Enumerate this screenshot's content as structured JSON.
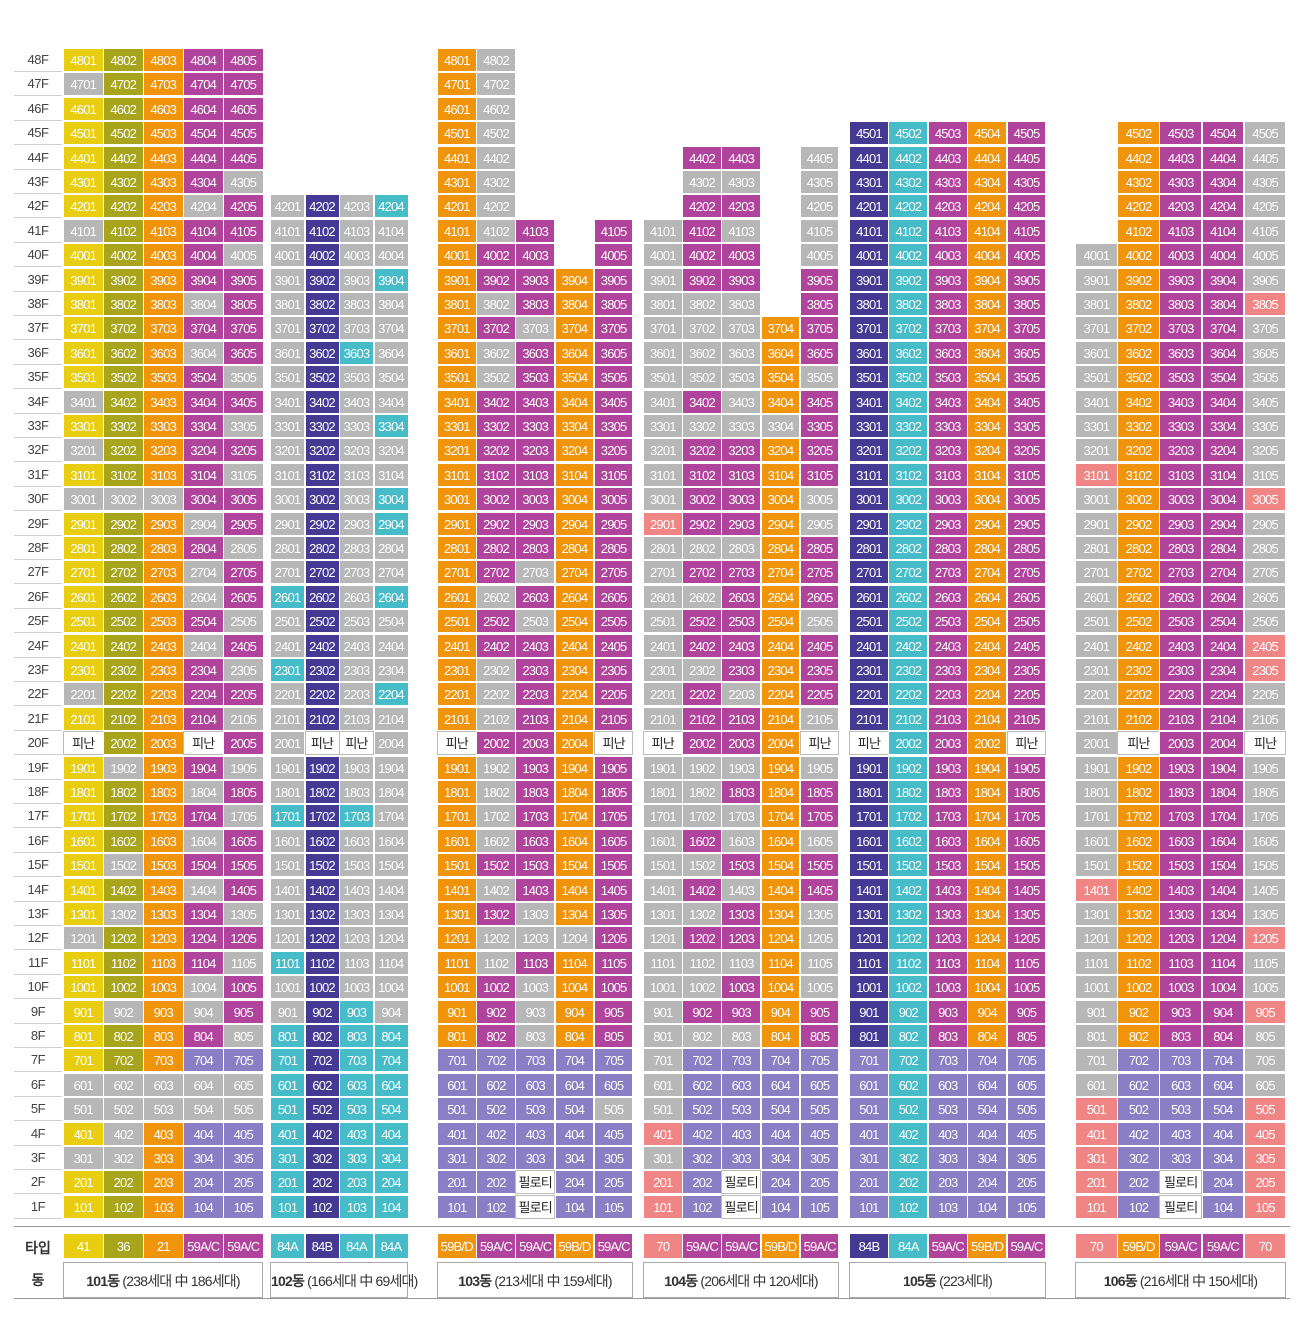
{
  "labels": {
    "type_row": "타입",
    "dong_row": "동",
    "refuge": "피난",
    "piloti": "필로티"
  },
  "floors": [
    "48F",
    "47F",
    "46F",
    "45F",
    "44F",
    "43F",
    "42F",
    "41F",
    "40F",
    "39F",
    "38F",
    "37F",
    "36F",
    "35F",
    "34F",
    "33F",
    "32F",
    "31F",
    "30F",
    "29F",
    "28F",
    "27F",
    "26F",
    "25F",
    "24F",
    "23F",
    "22F",
    "21F",
    "20F",
    "19F",
    "18F",
    "17F",
    "16F",
    "15F",
    "14F",
    "13F",
    "12F",
    "11F",
    "10F",
    "9F",
    "8F",
    "7F",
    "6F",
    "5F",
    "4F",
    "3F",
    "2F",
    "1F"
  ],
  "colors": {
    "Y": "#e8cd10",
    "O": "#a8a51c",
    "R": "#f0940c",
    "P": "#b0449c",
    "G": "#b7b7b7",
    "N": "#453a93",
    "C": "#47bcc9",
    "L": "#8a7ec4",
    "K": "#f08585",
    "W": "#ffffff"
  },
  "buildings": [
    {
      "dong_num": "101동",
      "dong_rest": " (238세대 中 186세대)",
      "types": [
        [
          "41",
          "Y"
        ],
        [
          "36",
          "O"
        ],
        [
          "21",
          "R"
        ],
        [
          "59A/C",
          "P"
        ],
        [
          "59A/C",
          "P"
        ]
      ],
      "top": 48,
      "cols": 5,
      "overrides": {
        "all:1": "G",
        "20:1": "W",
        "20:4": "W",
        "7:4": "L",
        "7:5": "L",
        "6:1": "G",
        "6:2": "G",
        "6:3": "G",
        "6:4": "G",
        "6:5": "G",
        "5:1": "G",
        "5:2": "G",
        "5:3": "G",
        "5:4": "G",
        "5:5": "G",
        "4:2": "G",
        "4:4": "L",
        "4:5": "L",
        "3:1": "G",
        "3:2": "G",
        "3:4": "L",
        "3:5": "L",
        "2:4": "L",
        "2:5": "L",
        "1:4": "L",
        "1:5": "L"
      },
      "grays": [
        "47:1",
        "43:5",
        "42:4",
        "41:1",
        "40:5",
        "38:4",
        "36:4",
        "35:5",
        "34:1",
        "33:5",
        "32:1",
        "31:5",
        "30:1",
        "30:2",
        "30:3",
        "29:4",
        "28:5",
        "27:4",
        "26:4",
        "25:5",
        "24:4",
        "23:5",
        "22:1",
        "21:5",
        "19:2",
        "19:5",
        "18:4",
        "17:5",
        "16:4",
        "15:2",
        "14:4",
        "13:2",
        "13:5",
        "12:1",
        "11:5",
        "10:4",
        "9:2",
        "9:4",
        "8:5"
      ],
      "fallback": [
        "Y",
        "O",
        "R",
        "P",
        "P"
      ]
    },
    {
      "dong_num": "102동",
      "dong_rest": " (166세대 中 69세대)",
      "types": [
        [
          "84A",
          "C"
        ],
        [
          "84B",
          "N"
        ],
        [
          "84A",
          "C"
        ],
        [
          "84A",
          "C"
        ]
      ],
      "top": 42,
      "cols": 4,
      "overrides": {},
      "grays": [],
      "fallback": [
        "G",
        "G",
        "G",
        "G"
      ]
    },
    {
      "dong_num": "103동",
      "dong_rest": " (213세대 中 159세대)",
      "types": [
        [
          "59B/D",
          "R"
        ],
        [
          "59A/C",
          "P"
        ],
        [
          "59A/C",
          "P"
        ],
        [
          "59B/D",
          "R"
        ],
        [
          "59A/C",
          "P"
        ]
      ],
      "top": 48,
      "cols": 5,
      "overrides": {},
      "grays": [],
      "fallback": [
        "R",
        "P",
        "P",
        "R",
        "P"
      ]
    },
    {
      "dong_num": "104동",
      "dong_rest": " (206세대 中 120세대)",
      "types": [
        [
          "70",
          "K"
        ],
        [
          "59A/C",
          "P"
        ],
        [
          "59A/C",
          "P"
        ],
        [
          "59B/D",
          "R"
        ],
        [
          "59A/C",
          "P"
        ]
      ],
      "top": 44,
      "cols": 5,
      "overrides": {},
      "grays": [],
      "fallback": [
        "G",
        "P",
        "P",
        "R",
        "P"
      ]
    },
    {
      "dong_num": "105동",
      "dong_rest": " (223세대)",
      "types": [
        [
          "84B",
          "N"
        ],
        [
          "84A",
          "C"
        ],
        [
          "59A/C",
          "P"
        ],
        [
          "59B/D",
          "R"
        ],
        [
          "59A/C",
          "P"
        ]
      ],
      "top": 45,
      "cols": 5,
      "overrides": {},
      "grays": [],
      "fallback": [
        "N",
        "C",
        "P",
        "R",
        "P"
      ]
    },
    {
      "dong_num": "106동",
      "dong_rest": " (216세대 中 150세대)",
      "types": [
        [
          "70",
          "K"
        ],
        [
          "59B/D",
          "R"
        ],
        [
          "59A/C",
          "P"
        ],
        [
          "59A/C",
          "P"
        ],
        [
          "70",
          "K"
        ]
      ],
      "top": 45,
      "cols": 5,
      "overrides": {},
      "grays": [],
      "fallback": [
        "G",
        "R",
        "P",
        "P",
        "G"
      ]
    }
  ]
}
